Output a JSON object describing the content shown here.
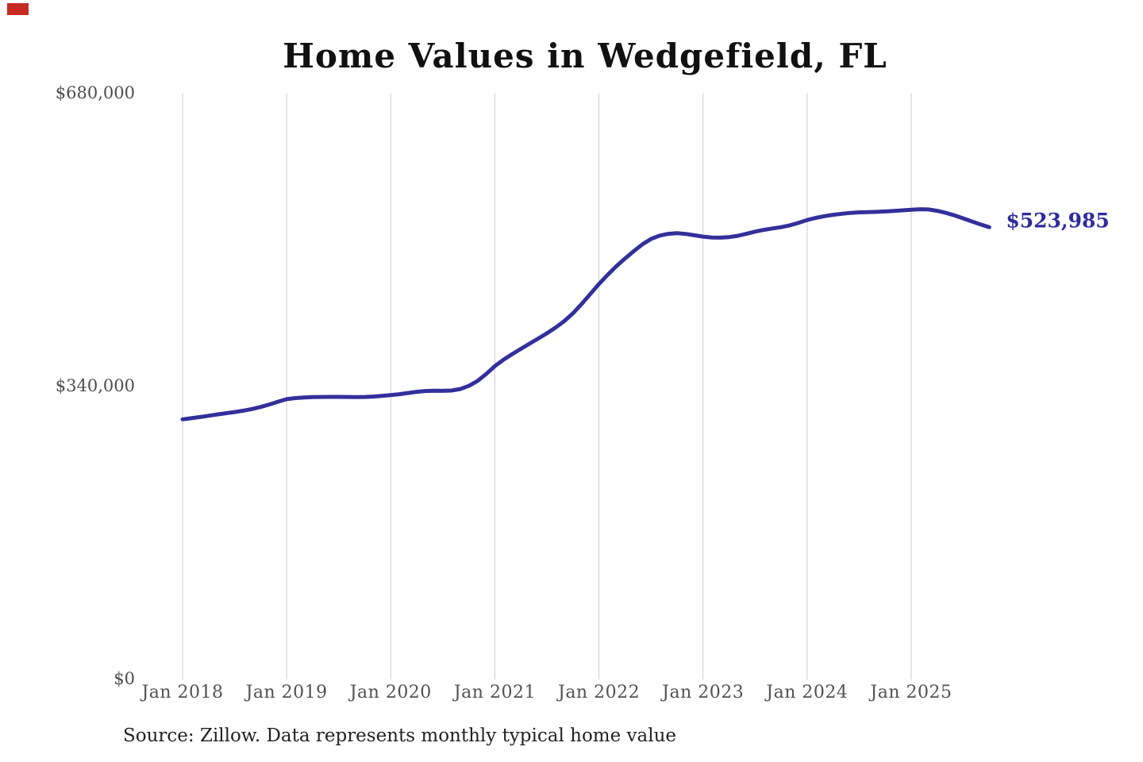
{
  "page": {
    "source_note": "Source: Zillow. Data represents monthly typical home value"
  },
  "decoration": {
    "corner_mark_color": "#C62B22"
  },
  "chart_data": {
    "type": "line",
    "title": "Home Values in Wedgefield, FL",
    "series_name": "Typical home value",
    "frequency": "monthly",
    "x_start": "Jan 2018",
    "x_tick_labels": [
      "Jan 2018",
      "Jan 2019",
      "Jan 2020",
      "Jan 2021",
      "Jan 2022",
      "Jan 2023",
      "Jan 2024",
      "Jan 2025"
    ],
    "y_ticks": [
      {
        "label": "$0",
        "value": 0
      },
      {
        "label": "$340,000",
        "value": 340000
      },
      {
        "label": "$680,000",
        "value": 680000
      }
    ],
    "ylim": [
      0,
      680000
    ],
    "grid": "vertical-only",
    "legend": "none",
    "line_color": "#332F9B",
    "end_label": "$523,985",
    "end_label_color": "#2F2B9E",
    "latest_value": 523985,
    "values": [
      301000,
      302300,
      303700,
      305200,
      306700,
      308100,
      309500,
      311100,
      313000,
      315400,
      318300,
      321500,
      324400,
      325700,
      326400,
      326800,
      327000,
      327100,
      327100,
      327000,
      326900,
      327000,
      327500,
      328200,
      329100,
      330200,
      331600,
      333000,
      333900,
      334200,
      334100,
      334500,
      336200,
      339800,
      345600,
      353600,
      362800,
      370200,
      376800,
      382800,
      388800,
      394800,
      400900,
      407500,
      415000,
      424000,
      434800,
      446400,
      458100,
      468700,
      478700,
      487600,
      496100,
      504100,
      510400,
      514300,
      516400,
      517100,
      516300,
      514700,
      513100,
      512100,
      511900,
      512600,
      514100,
      516400,
      518900,
      521000,
      522600,
      524100,
      526200,
      529100,
      532400,
      534900,
      536900,
      538500,
      539700,
      540700,
      541300,
      541600,
      541900,
      542300,
      542900,
      543600,
      544300,
      544900,
      544600,
      543100,
      540700,
      537700,
      534300,
      530700,
      527200,
      523985
    ]
  }
}
